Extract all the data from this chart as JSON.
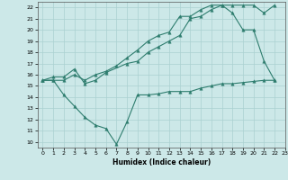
{
  "xlabel": "Humidex (Indice chaleur)",
  "bg_color": "#cce8e8",
  "line_color": "#2e7d6e",
  "grid_color": "#aad0d0",
  "xlim": [
    -0.5,
    23
  ],
  "ylim": [
    9.5,
    22.5
  ],
  "xticks": [
    0,
    1,
    2,
    3,
    4,
    5,
    6,
    7,
    8,
    9,
    10,
    11,
    12,
    13,
    14,
    15,
    16,
    17,
    18,
    19,
    20,
    21,
    22,
    23
  ],
  "yticks": [
    10,
    11,
    12,
    13,
    14,
    15,
    16,
    17,
    18,
    19,
    20,
    21,
    22
  ],
  "line1_x": [
    0,
    1,
    2,
    3,
    4,
    5,
    6,
    8,
    9,
    10,
    11,
    12,
    13,
    14,
    15,
    16,
    17,
    18,
    19,
    20,
    21,
    22
  ],
  "line1_y": [
    15.5,
    15.8,
    15.8,
    16.5,
    15.2,
    15.5,
    16.2,
    17.0,
    17.2,
    18.0,
    18.5,
    19.0,
    19.5,
    21.0,
    21.2,
    21.8,
    22.2,
    22.2,
    22.2,
    22.2,
    21.5,
    22.2
  ],
  "line2_x": [
    0,
    1,
    2,
    3,
    4,
    5,
    6,
    7,
    8,
    9,
    10,
    11,
    12,
    13,
    14,
    15,
    16,
    17,
    18,
    19,
    20,
    21,
    22
  ],
  "line2_y": [
    15.5,
    15.5,
    15.5,
    16.0,
    15.5,
    16.0,
    16.3,
    16.8,
    17.5,
    18.2,
    19.0,
    19.5,
    19.8,
    21.2,
    21.2,
    21.8,
    22.2,
    22.2,
    21.5,
    20.0,
    20.0,
    17.2,
    15.5
  ],
  "line3_x": [
    0,
    1,
    2,
    3,
    4,
    5,
    6,
    7,
    8,
    9,
    10,
    11,
    12,
    13,
    14,
    15,
    16,
    17,
    18,
    19,
    20,
    21,
    22
  ],
  "line3_y": [
    15.5,
    15.5,
    14.2,
    13.2,
    12.2,
    11.5,
    11.2,
    9.8,
    11.8,
    14.2,
    14.2,
    14.3,
    14.5,
    14.5,
    14.5,
    14.8,
    15.0,
    15.2,
    15.2,
    15.3,
    15.4,
    15.5,
    15.5
  ]
}
